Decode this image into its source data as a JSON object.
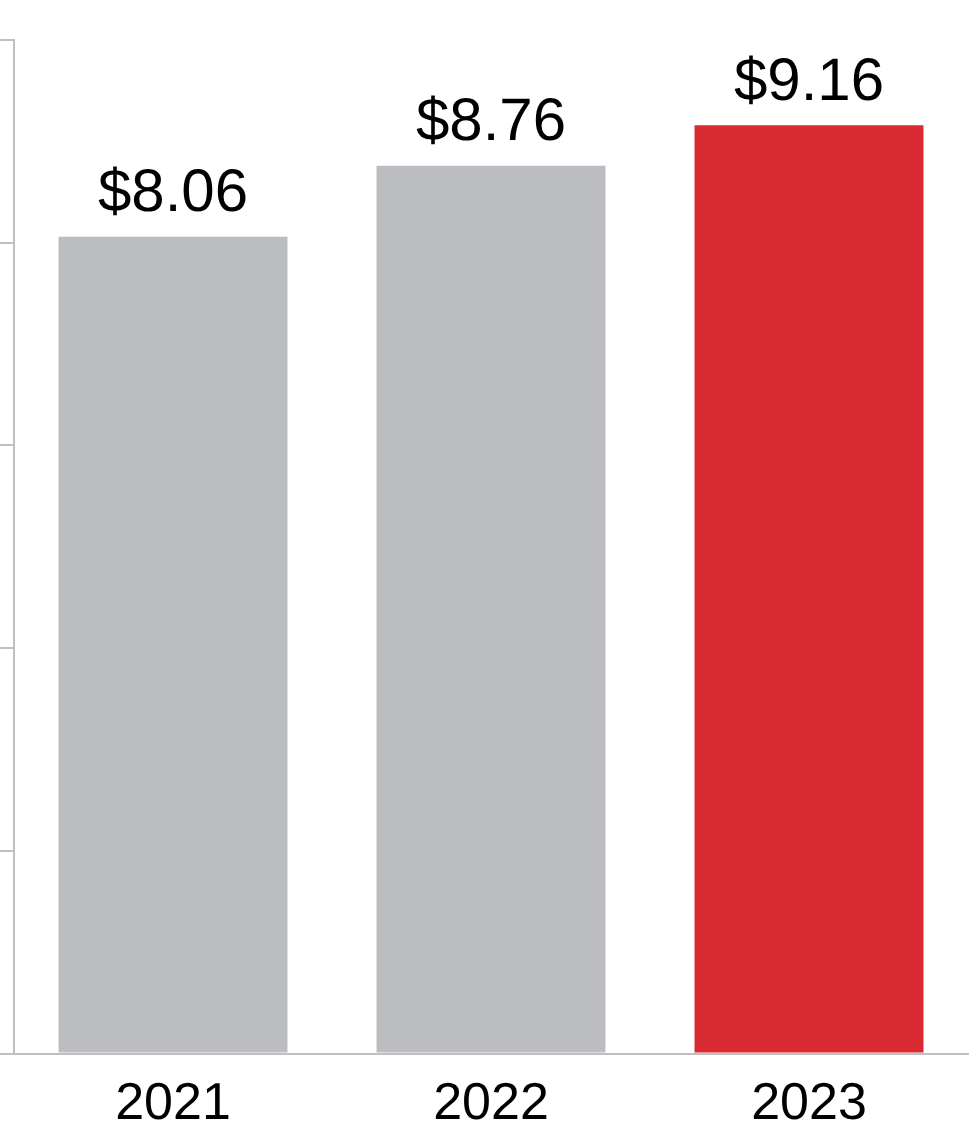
{
  "chart_data": {
    "type": "bar",
    "categories": [
      "2021",
      "2022",
      "2023"
    ],
    "values": [
      8.06,
      8.76,
      9.16
    ],
    "colors": [
      "#bcbdc0",
      "#bcbdc0",
      "#d92a32"
    ],
    "value_labels": [
      "$8.06",
      "$8.76",
      "$9.16"
    ],
    "ylim": [
      0,
      10
    ],
    "yticks": [
      {
        "value": 0,
        "label": null
      },
      {
        "value": 2,
        "label": null
      },
      {
        "value": 4,
        "label": null
      },
      {
        "value": 6,
        "label": null
      },
      {
        "value": 8,
        "label": null
      },
      {
        "value": 10,
        "label": null
      }
    ],
    "tick_labels": "x",
    "grid": false,
    "legend": false
  }
}
